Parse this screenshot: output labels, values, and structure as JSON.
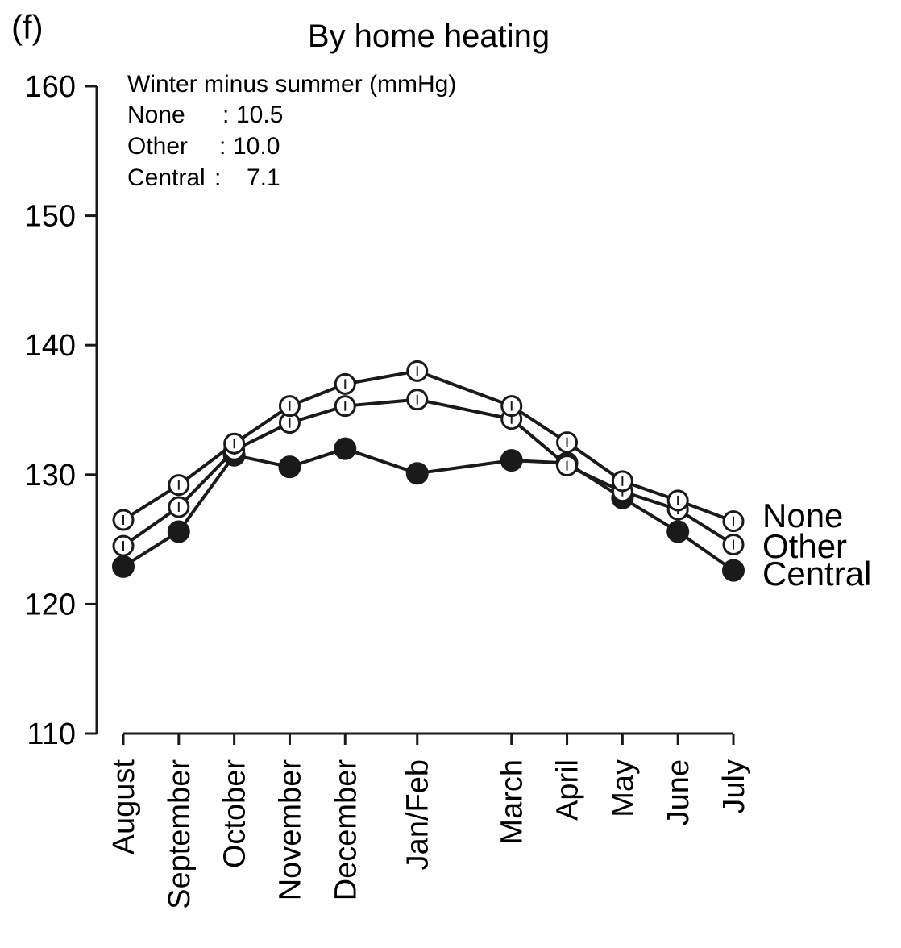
{
  "panel_label": "(f)",
  "chart_data": {
    "type": "line",
    "title": "By home heating",
    "xlabel": "",
    "ylabel": "",
    "ylim": [
      110,
      160
    ],
    "yticks": [
      110,
      120,
      130,
      140,
      150,
      160
    ],
    "categories": [
      "August",
      "September",
      "October",
      "November",
      "December",
      "Jan/Feb",
      "March",
      "April",
      "May",
      "June",
      "July"
    ],
    "x": [
      0,
      1,
      2,
      3,
      4,
      5.3,
      7,
      8,
      9,
      10,
      11
    ],
    "series": [
      {
        "name": "None",
        "marker": "open",
        "values": [
          126.5,
          129.2,
          132.4,
          135.3,
          137.0,
          138.0,
          135.3,
          132.5,
          129.5,
          128.0,
          126.4
        ]
      },
      {
        "name": "Other",
        "marker": "open",
        "values": [
          124.5,
          127.5,
          131.9,
          134.0,
          135.3,
          135.8,
          134.3,
          130.7,
          128.7,
          127.3,
          124.6
        ]
      },
      {
        "name": "Central",
        "marker": "filled",
        "values": [
          122.9,
          125.6,
          131.5,
          130.6,
          132.0,
          130.1,
          131.1,
          130.9,
          128.2,
          125.6,
          122.6
        ]
      }
    ],
    "grid": false,
    "annotation": {
      "heading": "Winter minus summer (mmHg)",
      "rows": [
        {
          "label": "None",
          "sep": ":",
          "value": "10.5"
        },
        {
          "label": "Other",
          "sep": ":",
          "value": "10.0"
        },
        {
          "label": "Central",
          "sep": ":",
          "value": "7.1"
        }
      ]
    },
    "colors": {
      "line": "#1a1a1a",
      "open_fill": "#ffffff",
      "filled": "#1a1a1a"
    }
  }
}
